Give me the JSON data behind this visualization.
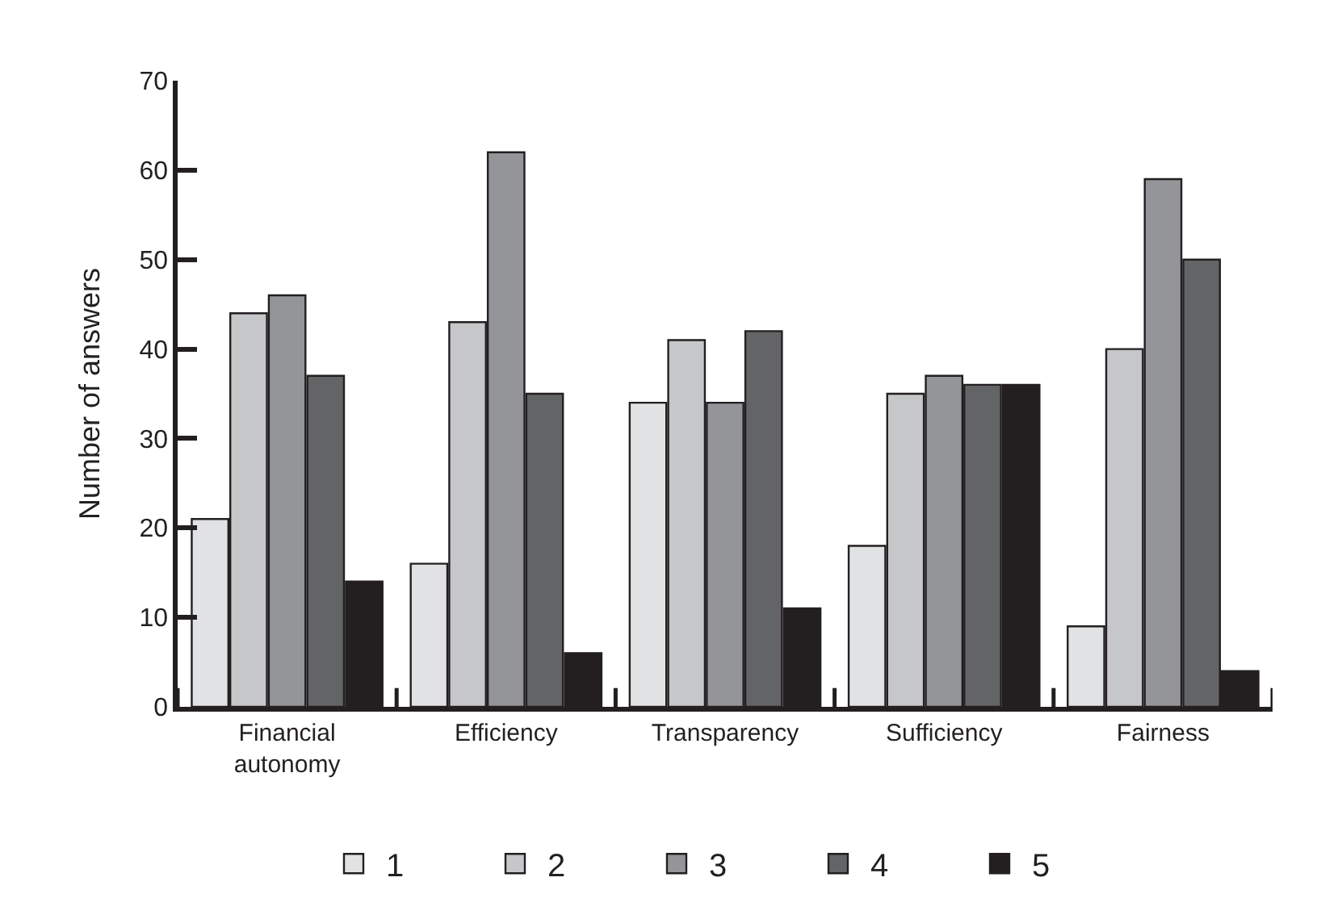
{
  "chart_data": {
    "type": "bar",
    "ylabel": "Number of answers",
    "categories": [
      "Financial\nautonomy",
      "Efficiency",
      "Transparency",
      "Sufficiency",
      "Fairness"
    ],
    "series": [
      {
        "name": "1",
        "color": "#e1e2e4",
        "values": [
          21,
          16,
          34,
          18,
          9
        ]
      },
      {
        "name": "2",
        "color": "#c6c7c9",
        "values": [
          44,
          43,
          41,
          35,
          40
        ]
      },
      {
        "name": "3",
        "color": "#939598",
        "values": [
          46,
          62,
          34,
          37,
          59
        ]
      },
      {
        "name": "4",
        "color": "#636466",
        "values": [
          37,
          35,
          42,
          36,
          50
        ]
      },
      {
        "name": "5",
        "color": "#231f20",
        "values": [
          14,
          6,
          11,
          36,
          4
        ]
      }
    ],
    "ylim": [
      0,
      70
    ],
    "yticks": [
      0,
      10,
      20,
      30,
      40,
      50,
      60,
      70
    ],
    "legend": "bottom"
  }
}
